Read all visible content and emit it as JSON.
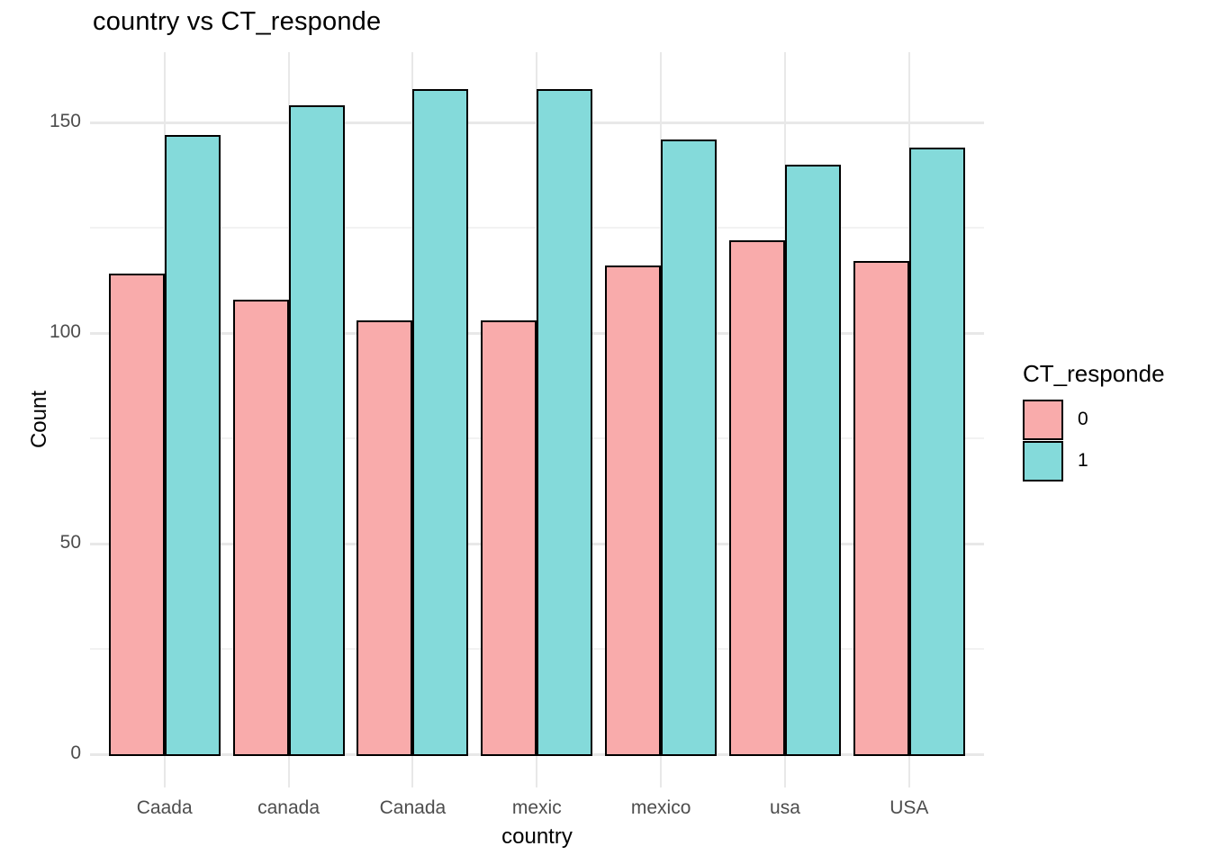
{
  "chart_data": {
    "type": "bar",
    "title": "country vs CT_responde",
    "xlabel": "country",
    "ylabel": "Count",
    "categories": [
      "Caada",
      "canada",
      "Canada",
      "mexic",
      "mexico",
      "usa",
      "USA"
    ],
    "series": [
      {
        "name": "0",
        "color": "#f9abab",
        "values": [
          114,
          108,
          103,
          103,
          116,
          122,
          117
        ]
      },
      {
        "name": "1",
        "color": "#84dada",
        "values": [
          147,
          154,
          158,
          158,
          146,
          140,
          144
        ]
      }
    ],
    "ylim": [
      0,
      166
    ],
    "yticks": [
      0,
      50,
      100,
      150
    ],
    "yticks_minor": [
      25,
      75,
      125
    ],
    "grid": true,
    "legend_title": "CT_responde",
    "legend_position": "right",
    "bar_outline_color": "#000000",
    "tick_label_color": "#4d4d4d",
    "grid_major_color": "#e8e8e8",
    "grid_minor_color": "#f2f2f2"
  }
}
